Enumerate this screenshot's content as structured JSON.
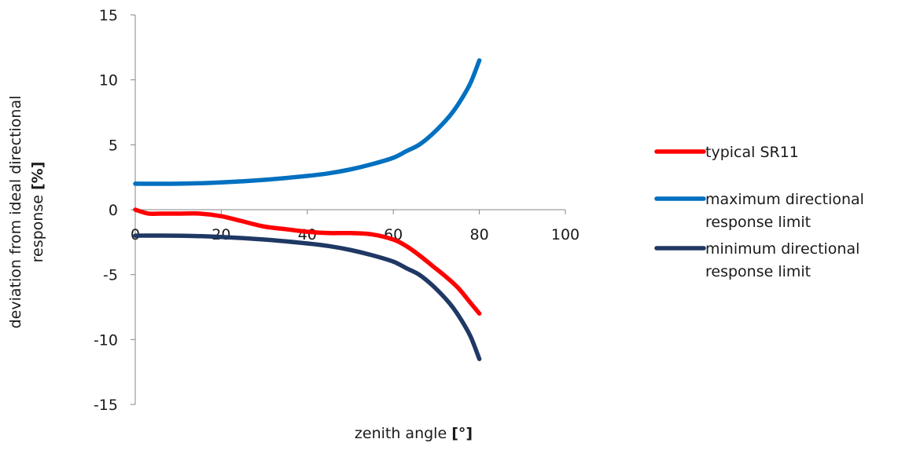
{
  "chart_data": {
    "type": "line",
    "title": "",
    "xlabel": "zenith angle",
    "xlabel_unit": "[°]",
    "ylabel_line1": "deviation from ideal directional",
    "ylabel_line2": "response",
    "ylabel_unit": "[%]",
    "xlim": [
      0,
      100
    ],
    "ylim": [
      -15,
      15
    ],
    "xticks": [
      0,
      20,
      40,
      60,
      80,
      100
    ],
    "yticks": [
      15,
      10,
      5,
      0,
      -5,
      -10,
      -15
    ],
    "grid": false,
    "legend_position": "right",
    "series": [
      {
        "name": "typical SR11",
        "color": "#ff0000",
        "x": [
          0,
          3,
          6,
          10,
          15,
          20,
          25,
          30,
          35,
          40,
          45,
          50,
          55,
          60,
          63,
          66,
          69,
          72,
          75,
          78,
          80
        ],
        "y": [
          0,
          -0.3,
          -0.3,
          -0.3,
          -0.3,
          -0.5,
          -0.9,
          -1.3,
          -1.5,
          -1.7,
          -1.8,
          -1.8,
          -1.9,
          -2.3,
          -2.8,
          -3.5,
          -4.3,
          -5.1,
          -6.0,
          -7.2,
          -8.0
        ]
      },
      {
        "name": "maximum directional response limit",
        "legend_lines": [
          "maximum directional",
          "response limit"
        ],
        "color": "#0070c0",
        "x": [
          0,
          10,
          20,
          30,
          40,
          45,
          50,
          55,
          60,
          63,
          66,
          69,
          72,
          74,
          76,
          78,
          80
        ],
        "y": [
          2.0,
          2.0,
          2.1,
          2.3,
          2.6,
          2.8,
          3.1,
          3.5,
          4.0,
          4.5,
          5.0,
          5.8,
          6.8,
          7.6,
          8.6,
          9.8,
          11.5
        ]
      },
      {
        "name": "minimum directional response limit",
        "legend_lines": [
          "minimum directional",
          "response limit"
        ],
        "color": "#1f3864",
        "x": [
          0,
          10,
          20,
          30,
          40,
          45,
          50,
          55,
          60,
          63,
          66,
          69,
          72,
          74,
          76,
          78,
          80
        ],
        "y": [
          -2.0,
          -2.0,
          -2.1,
          -2.3,
          -2.6,
          -2.8,
          -3.1,
          -3.5,
          -4.0,
          -4.5,
          -5.0,
          -5.8,
          -6.8,
          -7.6,
          -8.6,
          -9.8,
          -11.5
        ]
      }
    ]
  }
}
